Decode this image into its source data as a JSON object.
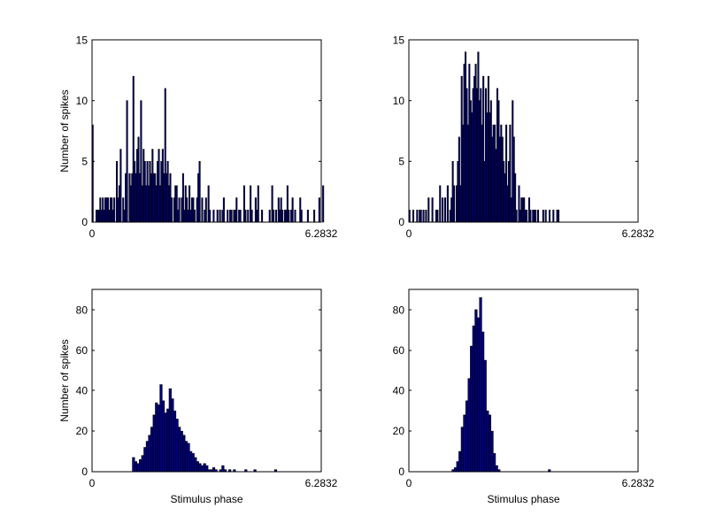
{
  "colors": {
    "bar_fill": "#000080",
    "bar_edge": "#000000",
    "axes": "#000000",
    "background": "#ffffff"
  },
  "chart_data": [
    {
      "type": "bar",
      "position": "top-left",
      "ylabel": "Number of spikes",
      "xlabel": "",
      "xlim": [
        0,
        6.2832
      ],
      "ylim": [
        0,
        15
      ],
      "xtick_labels": [
        "0",
        "6.2832"
      ],
      "ytick_labels": [
        "0",
        "5",
        "10",
        "15"
      ],
      "grid": false,
      "values": [
        8,
        0,
        0,
        1,
        1,
        1,
        2,
        1,
        2,
        1,
        2,
        2,
        2,
        1,
        2,
        2,
        1,
        2,
        0,
        5,
        2,
        3,
        6,
        0,
        2,
        1,
        4,
        10,
        0,
        4,
        3,
        4,
        12,
        5,
        4,
        6,
        7,
        4,
        10,
        3,
        6,
        5,
        3,
        5,
        3,
        5,
        4,
        6,
        4,
        4,
        3,
        5,
        6,
        3,
        5,
        6,
        4,
        11,
        4,
        5,
        3,
        4,
        2,
        0,
        2,
        3,
        3,
        1,
        2,
        0,
        2,
        4,
        1,
        3,
        2,
        1,
        3,
        1,
        2,
        2,
        1,
        0,
        2,
        4,
        5,
        0,
        2,
        0,
        1,
        2,
        0,
        3,
        1,
        0,
        0,
        1,
        0,
        0,
        1,
        0,
        1,
        0,
        1,
        2,
        0,
        0,
        1,
        0,
        1,
        1,
        0,
        1,
        1,
        2,
        0,
        1,
        1,
        0,
        0,
        3,
        1,
        0,
        1,
        0,
        3,
        1,
        0,
        0,
        2,
        1,
        3,
        0,
        0,
        1,
        0,
        0,
        0,
        0,
        0,
        1,
        0,
        3,
        1,
        0,
        1,
        0,
        2,
        1,
        2,
        1,
        0,
        1,
        1,
        3,
        1,
        0,
        1,
        2,
        0,
        1,
        0,
        0,
        0,
        2,
        1,
        0,
        0,
        0,
        0,
        1,
        0,
        0,
        0,
        0,
        1,
        0,
        0,
        0,
        2,
        0,
        0,
        3
      ]
    },
    {
      "type": "bar",
      "position": "top-right",
      "ylabel": "",
      "xlabel": "",
      "xlim": [
        0,
        6.2832
      ],
      "ylim": [
        0,
        15
      ],
      "xtick_labels": [
        "0",
        "6.2832"
      ],
      "ytick_labels": [
        "0",
        "5",
        "10",
        "15"
      ],
      "grid": false,
      "values": [
        1,
        0,
        0,
        1,
        0,
        0,
        1,
        0,
        1,
        1,
        0,
        1,
        0,
        1,
        0,
        2,
        0,
        0,
        2,
        0,
        0,
        1,
        1,
        0,
        3,
        0,
        2,
        0,
        2,
        0,
        3,
        0,
        1,
        2,
        5,
        3,
        0,
        3,
        5,
        7,
        3,
        12,
        8,
        13,
        14,
        11,
        8,
        13,
        10,
        9,
        11,
        12,
        13,
        11,
        14,
        10,
        11,
        8,
        12,
        5,
        11,
        9,
        12,
        9,
        10,
        7,
        8,
        8,
        6,
        11,
        10,
        7,
        8,
        7,
        5,
        4,
        8,
        3,
        5,
        8,
        2,
        10,
        7,
        4,
        1,
        0,
        3,
        1,
        2,
        2,
        2,
        1,
        1,
        0,
        2,
        1,
        0,
        1,
        1,
        1,
        0,
        1,
        0,
        0,
        0,
        1,
        0,
        1,
        0,
        0,
        1,
        0,
        0,
        1,
        0,
        0,
        1,
        1
      ]
    },
    {
      "type": "bar",
      "position": "bottom-left",
      "ylabel": "Number of spikes",
      "xlabel": "Stimulus phase",
      "xlim": [
        0,
        6.2832
      ],
      "ylim": [
        0,
        90
      ],
      "xtick_labels": [
        "0",
        "6.2832"
      ],
      "ytick_labels": [
        "0",
        "20",
        "40",
        "60",
        "80"
      ],
      "grid": false,
      "values": [
        7,
        5,
        4,
        6,
        8,
        12,
        15,
        18,
        22,
        28,
        34,
        33,
        43,
        35,
        29,
        31,
        41,
        36,
        30,
        26,
        22,
        20,
        18,
        15,
        14,
        10,
        9,
        7,
        5,
        4,
        3,
        4,
        3,
        1,
        1,
        2,
        1,
        0,
        1,
        3,
        1,
        0,
        1,
        0,
        1,
        0,
        0,
        0,
        0,
        1,
        0,
        0,
        0,
        1,
        0,
        0,
        0,
        0,
        0,
        0,
        0,
        0,
        1
      ]
    },
    {
      "type": "bar",
      "position": "bottom-right",
      "ylabel": "",
      "xlabel": "Stimulus phase",
      "xlim": [
        0,
        6.2832
      ],
      "ylim": [
        0,
        90
      ],
      "xtick_labels": [
        "0",
        "6.2832"
      ],
      "ytick_labels": [
        "0",
        "20",
        "40",
        "60",
        "80"
      ],
      "grid": false,
      "values": [
        1,
        2,
        5,
        10,
        22,
        28,
        35,
        46,
        62,
        72,
        80,
        76,
        86,
        69,
        55,
        30,
        28,
        20,
        9,
        3,
        1,
        0,
        0,
        0,
        0,
        0,
        0,
        0,
        0,
        0,
        0,
        0,
        0,
        0,
        0,
        0,
        0,
        0,
        0,
        0,
        0,
        0,
        1
      ]
    }
  ]
}
